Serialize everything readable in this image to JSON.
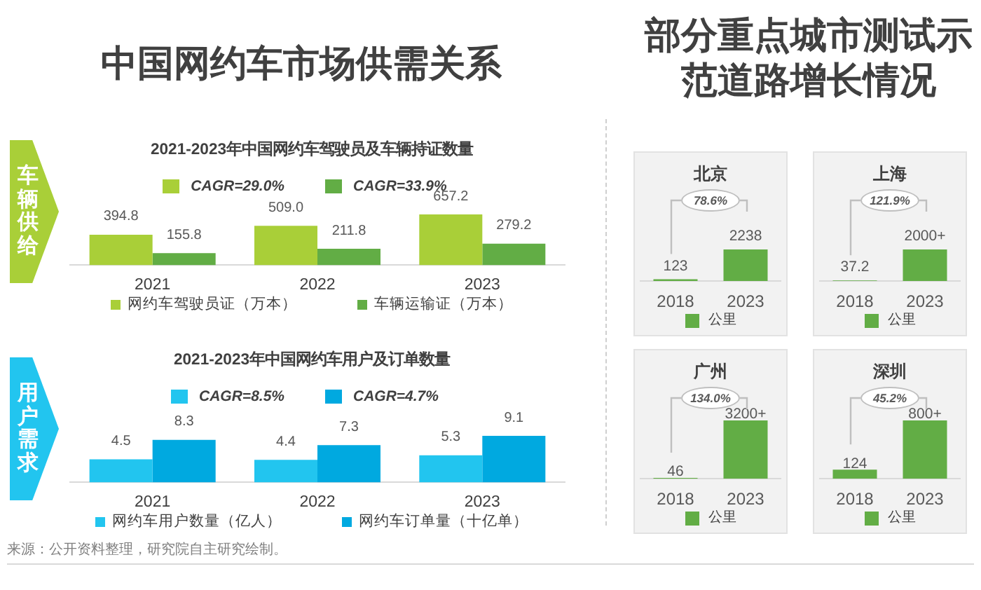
{
  "chart_data": [
    {
      "type": "other",
      "title": "中国网约车市场供需关系"
    },
    {
      "type": "bar",
      "title": "2021-2023年中国网约车驾驶员及车辆持证数量",
      "categories": [
        "2021",
        "2022",
        "2023"
      ],
      "series": [
        {
          "name": "网约车驾驶员证（万本）",
          "color": "#a9cf38",
          "values": [
            394.8,
            509.0,
            657.2
          ],
          "value_labels": [
            "394.8",
            "509.0",
            "657.2"
          ]
        },
        {
          "name": "车辆运输证（万本）",
          "color": "#62ad45",
          "values": [
            155.8,
            211.8,
            279.2
          ],
          "value_labels": [
            "155.8",
            "211.8",
            "279.2"
          ]
        }
      ],
      "legend": "bottom",
      "annotations": [
        "车辆供给",
        "CAGR=29.0%",
        "CAGR=33.9%"
      ]
    },
    {
      "type": "bar",
      "title": "2021-2023年中国网约车用户及订单数量",
      "categories": [
        "2021",
        "2022",
        "2023"
      ],
      "series": [
        {
          "name": "网约车用户数量（亿人）",
          "color": "#22c5ef",
          "values": [
            4.5,
            4.4,
            5.3
          ]
        },
        {
          "name": "网约车订单量（十亿单）",
          "color": "#00a9e0",
          "values": [
            8.3,
            7.3,
            9.1
          ]
        }
      ],
      "data_labels": true,
      "legend": "bottom",
      "annotations": [
        "用户需求",
        "CAGR=8.5%",
        "CAGR=4.7%",
        "来源：公开资料整理，研究院自主研究绘制。"
      ]
    },
    {
      "type": "other",
      "title": "部分重点城市测试示范道路增长情况"
    },
    {
      "type": "bar",
      "title": "北京",
      "categories": [
        "2018",
        "2023"
      ],
      "series": [
        {
          "name": "公里",
          "color": "#62ad45",
          "values": [
            123,
            2238
          ]
        }
      ],
      "data_labels": true,
      "legend": "bottom",
      "annotations": [
        "78.6%"
      ]
    },
    {
      "type": "bar",
      "title": "上海",
      "categories": [
        "2018",
        "2023"
      ],
      "series": [
        {
          "name": "公里",
          "color": "#62ad45",
          "values": [
            37.2,
            2000
          ],
          "value_labels": [
            "37.2",
            "2000+"
          ]
        }
      ],
      "legend": "bottom",
      "annotations": [
        "121.9%"
      ]
    },
    {
      "type": "bar",
      "title": "广州",
      "categories": [
        "2018",
        "2023"
      ],
      "series": [
        {
          "name": "公里",
          "color": "#62ad45",
          "values": [
            46,
            3200
          ],
          "value_labels": [
            "46",
            "3200+"
          ]
        }
      ],
      "legend": "bottom",
      "annotations": [
        "134.0%"
      ]
    },
    {
      "type": "bar",
      "title": "深圳",
      "categories": [
        "2018",
        "2023"
      ],
      "series": [
        {
          "name": "公里",
          "color": "#62ad45",
          "values": [
            124,
            800
          ],
          "value_labels": [
            "124",
            "800+"
          ]
        }
      ],
      "legend": "bottom",
      "annotations": [
        "45.2%"
      ]
    }
  ]
}
